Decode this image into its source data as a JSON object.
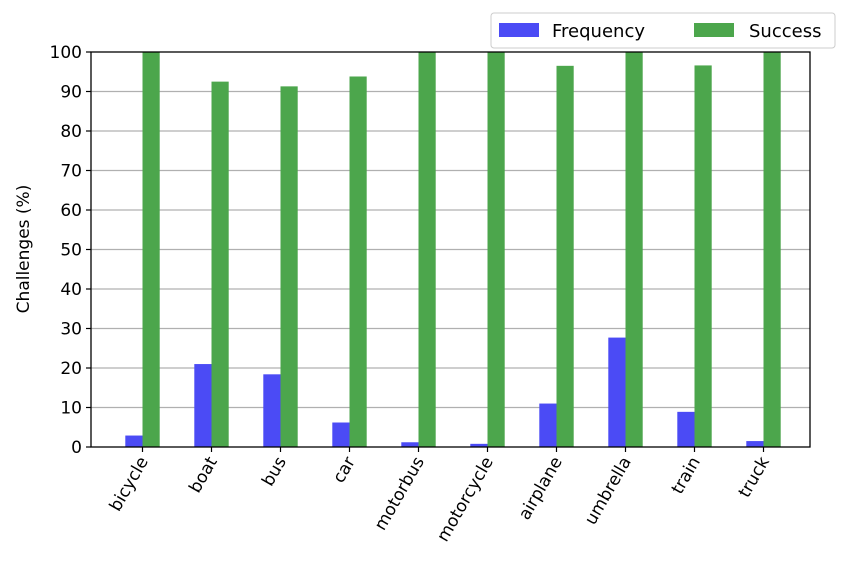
{
  "chart_data": {
    "type": "bar",
    "categories": [
      "bicycle",
      "boat",
      "bus",
      "car",
      "motorbus",
      "motorcycle",
      "airplane",
      "umbrella",
      "train",
      "truck"
    ],
    "series": [
      {
        "name": "Frequency",
        "color": "#4b4bf5",
        "values": [
          2.9,
          21.0,
          18.4,
          6.2,
          1.2,
          0.8,
          11.0,
          27.7,
          8.9,
          1.5
        ]
      },
      {
        "name": "Success",
        "color": "#4ca64c",
        "values": [
          100,
          92.5,
          91.3,
          93.8,
          100,
          100,
          96.5,
          100,
          96.6,
          100
        ]
      }
    ],
    "ylabel": "Challenges (%)",
    "xlabel": "",
    "ylim": [
      0,
      100
    ],
    "yticks": [
      0,
      10,
      20,
      30,
      40,
      50,
      60,
      70,
      80,
      90,
      100
    ],
    "grid": "horizontal",
    "legend": "top-right"
  }
}
